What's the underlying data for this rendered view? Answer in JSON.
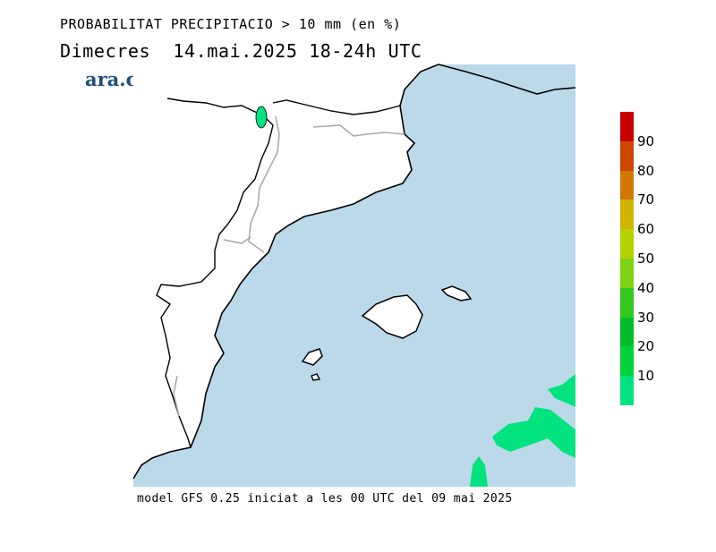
{
  "title": "PROBABILITAT PRECIPITACIO > 10 mm (en %)",
  "subtitle": "Dimecres  14.mai.2025 18-24h UTC",
  "logo": "ara.cat",
  "footer": "model GFS 0.25 iniciat a les 00 UTC del 09 mai 2025",
  "colors": {
    "sea": "#bcd9ea",
    "land": "#ffffff",
    "coast": "#000000",
    "border": "#aaaaaa"
  },
  "legend": {
    "ticks": [
      "10",
      "20",
      "30",
      "40",
      "50",
      "60",
      "70",
      "80",
      "90"
    ],
    "colors": [
      "#00e37f",
      "#00d23c",
      "#00bc28",
      "#33c81e",
      "#7fd214",
      "#b4d200",
      "#d2b400",
      "#d27800",
      "#cd4600",
      "#c80000"
    ]
  }
}
